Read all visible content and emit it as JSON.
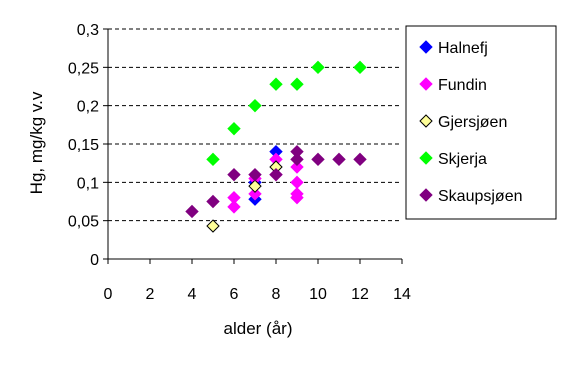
{
  "chart_data": {
    "type": "scatter",
    "xlabel": "alder (år)",
    "ylabel": "Hg, mg/kg v.v",
    "xlim": [
      0,
      14
    ],
    "ylim": [
      0,
      0.3
    ],
    "x_ticks": [
      "0",
      "2",
      "4",
      "6",
      "8",
      "10",
      "12",
      "14"
    ],
    "y_ticks": [
      "0",
      "0,05",
      "0,1",
      "0,15",
      "0,2",
      "0,25",
      "0,3"
    ],
    "grid": "horizontal dashed",
    "legend_position": "right",
    "series": [
      {
        "name": "Halnefj",
        "color": "#0000ff",
        "points": [
          [
            7,
            0.078
          ],
          [
            7,
            0.1
          ],
          [
            8,
            0.14
          ]
        ]
      },
      {
        "name": "Fundin",
        "color": "#ff00ff",
        "points": [
          [
            6,
            0.068
          ],
          [
            6,
            0.08
          ],
          [
            7,
            0.085
          ],
          [
            7,
            0.105
          ],
          [
            8,
            0.11
          ],
          [
            8,
            0.13
          ],
          [
            9,
            0.08
          ],
          [
            9,
            0.085
          ],
          [
            9,
            0.1
          ],
          [
            9,
            0.12
          ]
        ]
      },
      {
        "name": "Gjersjøen",
        "color": "#ffff99",
        "points": [
          [
            5,
            0.043
          ],
          [
            7,
            0.095
          ],
          [
            8,
            0.12
          ]
        ]
      },
      {
        "name": "Skjerja",
        "color": "#00ff00",
        "points": [
          [
            5,
            0.13
          ],
          [
            6,
            0.17
          ],
          [
            7,
            0.2
          ],
          [
            8,
            0.228
          ],
          [
            9,
            0.228
          ],
          [
            10,
            0.25
          ],
          [
            12,
            0.25
          ]
        ]
      },
      {
        "name": "Skaupsjøen",
        "color": "#800080",
        "points": [
          [
            4,
            0.062
          ],
          [
            5,
            0.075
          ],
          [
            6,
            0.11
          ],
          [
            7,
            0.11
          ],
          [
            8,
            0.11
          ],
          [
            9,
            0.14
          ],
          [
            9,
            0.13
          ],
          [
            10,
            0.13
          ],
          [
            11,
            0.13
          ],
          [
            12,
            0.13
          ]
        ]
      }
    ]
  }
}
